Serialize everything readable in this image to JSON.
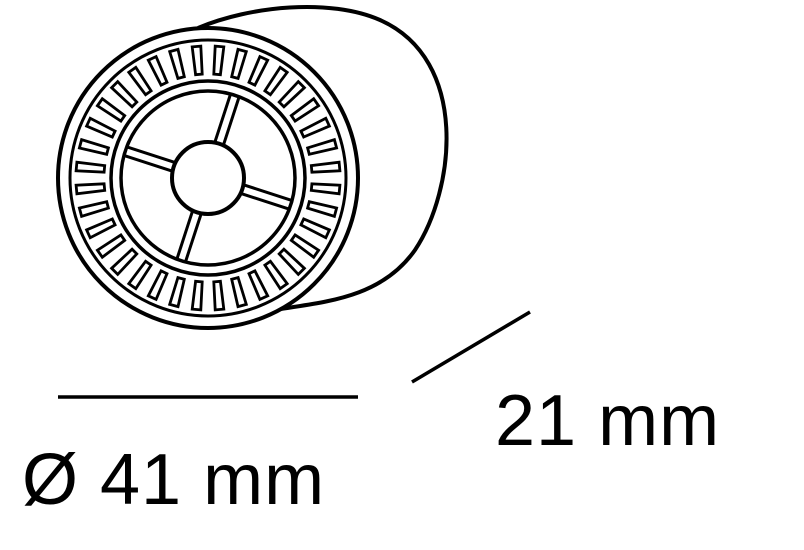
{
  "diagram": {
    "subject": "roller-wheel",
    "stroke_color": "#000000",
    "background": "#ffffff",
    "rib_slot_count": 36,
    "spoke_count": 4
  },
  "dimensions": {
    "diameter_label": "Ø 41 mm",
    "length_label": "21 mm"
  }
}
